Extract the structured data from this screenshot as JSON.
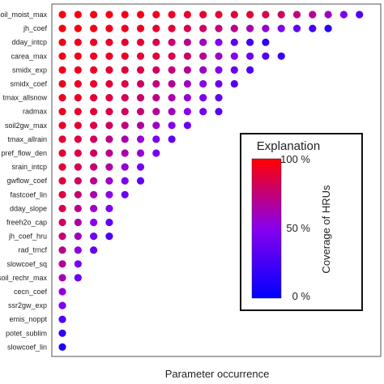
{
  "chart_data": {
    "type": "scatter",
    "title": "",
    "xlabel": "Parameter occurrence",
    "ylabel": "",
    "grid": false,
    "parameters": [
      "soil_moist_max",
      "jh_coef",
      "dday_intcp",
      "carea_max",
      "smidx_exp",
      "smidx_coef",
      "tmax_allsnow",
      "radmax",
      "soil2gw_max",
      "tmax_allrain",
      "pref_flow_den",
      "srain_intcp",
      "gwflow_coef",
      "fastcoef_lin",
      "dday_slope",
      "freeh2o_cap",
      "jh_coef_hru",
      "rad_trncf",
      "slowcoef_sq",
      "soil_rechr_max",
      "cecn_coef",
      "ssr2gw_exp",
      "emis_noppt",
      "potet_sublim",
      "slowcoef_lin"
    ],
    "coverage_percent": [
      [
        97,
        97,
        96,
        96,
        95,
        95,
        94,
        93,
        92,
        91,
        90,
        89,
        88,
        85,
        80,
        75,
        70,
        60,
        45,
        30
      ],
      [
        96,
        96,
        95,
        94,
        93,
        92,
        90,
        88,
        85,
        80,
        75,
        70,
        62,
        55,
        45,
        35,
        25,
        15
      ],
      [
        95,
        94,
        93,
        92,
        90,
        88,
        84,
        78,
        70,
        60,
        48,
        35,
        25,
        15
      ],
      [
        96,
        95,
        94,
        93,
        92,
        90,
        88,
        85,
        80,
        70,
        60,
        50,
        40,
        30,
        20
      ],
      [
        95,
        94,
        92,
        90,
        88,
        85,
        80,
        75,
        68,
        58,
        48,
        38,
        28
      ],
      [
        94,
        93,
        91,
        88,
        85,
        80,
        75,
        68,
        60,
        50,
        40,
        30
      ],
      [
        93,
        92,
        89,
        86,
        82,
        78,
        72,
        64,
        56,
        46,
        36
      ],
      [
        93,
        91,
        88,
        85,
        80,
        75,
        68,
        60,
        50,
        42,
        34
      ],
      [
        91,
        89,
        85,
        80,
        74,
        66,
        58,
        48,
        38
      ],
      [
        90,
        86,
        80,
        72,
        64,
        55,
        45,
        35
      ],
      [
        90,
        86,
        80,
        72,
        64,
        55,
        45
      ],
      [
        89,
        84,
        76,
        66,
        55,
        45
      ],
      [
        88,
        80,
        70,
        58,
        46,
        36
      ],
      [
        86,
        76,
        64,
        52,
        40
      ],
      [
        84,
        72,
        58,
        45
      ],
      [
        80,
        66,
        50,
        35
      ],
      [
        76,
        60,
        42,
        28
      ],
      [
        72,
        52,
        36
      ],
      [
        68,
        45
      ],
      [
        62,
        38
      ],
      [
        55
      ],
      [
        45
      ],
      [
        30
      ],
      [
        18
      ],
      [
        10
      ]
    ],
    "legend": {
      "title": "Explanation",
      "side_label": "Coverage of HRUs",
      "tick_labels": [
        "100 %",
        "50 %",
        "0 %"
      ],
      "colors": {
        "high": "#ff0000",
        "mid": "#8800ee",
        "low": "#0000ff"
      },
      "placement": "right"
    }
  }
}
